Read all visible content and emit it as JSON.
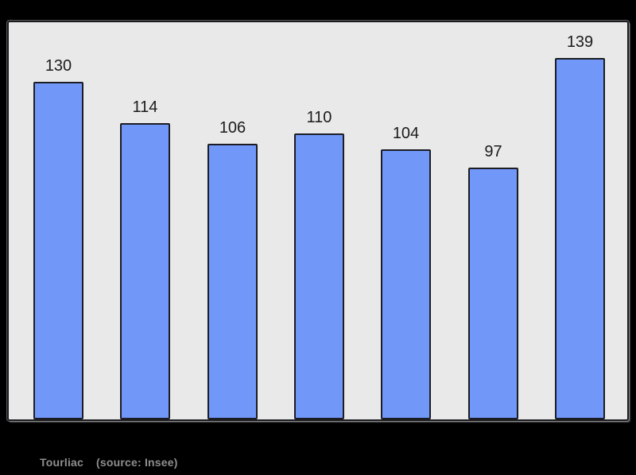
{
  "colors": {
    "outer_background": "#000000",
    "plot_background": "#e9e9e9",
    "plot_border": "#1a1b20",
    "bar_fill": "#7197f8",
    "bar_stroke": "#1c1d24",
    "bar_label": "#1b1b1b",
    "caption_text": "#8e8e8e"
  },
  "caption": {
    "place": "Tourliac",
    "source": "(source: Insee)"
  },
  "chart_data": {
    "type": "bar",
    "categories": [
      "",
      "",
      "",
      "",
      "",
      "",
      ""
    ],
    "values": [
      130,
      114,
      106,
      110,
      104,
      97,
      139
    ],
    "title": "",
    "xlabel": "",
    "ylabel": "",
    "ylim": [
      0,
      153
    ],
    "grid": false,
    "legend_position": "none",
    "data_labels": [
      130,
      114,
      106,
      110,
      104,
      97,
      139
    ],
    "data_labels_shown": true
  }
}
